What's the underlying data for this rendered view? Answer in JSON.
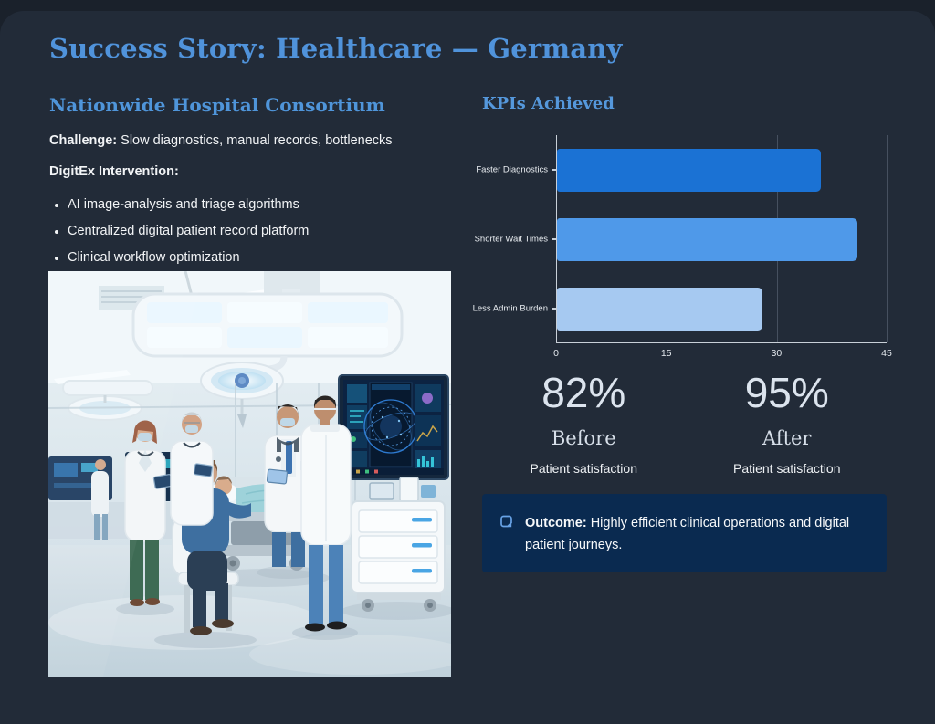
{
  "header": {
    "title": "Success Story: Healthcare — Germany"
  },
  "left": {
    "heading": "Nationwide Hospital Consortium",
    "challenge_label": "Challenge:",
    "challenge_text": " Slow diagnostics, manual records, bottlenecks",
    "intervention_label": "DigitEx Intervention:",
    "bullets": [
      "AI image-analysis and triage algorithms",
      "Centralized digital patient record platform",
      "Clinical workflow optimization"
    ]
  },
  "kpis": {
    "heading": "KPIs Achieved"
  },
  "chart_data": {
    "type": "bar",
    "orientation": "horizontal",
    "title": "KPIs Achieved",
    "categories": [
      "Faster Diagnostics",
      "Shorter Wait Times",
      "Less Admin Burden"
    ],
    "values": [
      36,
      41,
      28
    ],
    "xlim": [
      0,
      45
    ],
    "xticks": [
      0,
      15,
      30,
      45
    ],
    "bar_colors": [
      "#1B72D4",
      "#4F99E9",
      "#A6C9F1"
    ],
    "grid": true,
    "legend": false
  },
  "stats": [
    {
      "value": "82%",
      "label": "Before",
      "sublabel": "Patient satisfaction"
    },
    {
      "value": "95%",
      "label": "After",
      "sublabel": "Patient satisfaction"
    }
  ],
  "outcome": {
    "label": "Outcome:",
    "text": " Highly efficient clinical operations and digital patient journeys."
  },
  "colors": {
    "background": "#222B38",
    "accent_heading": "#4F95DA",
    "outcome_box": "#0A2A50",
    "stat_text": "#DCE4EE"
  }
}
